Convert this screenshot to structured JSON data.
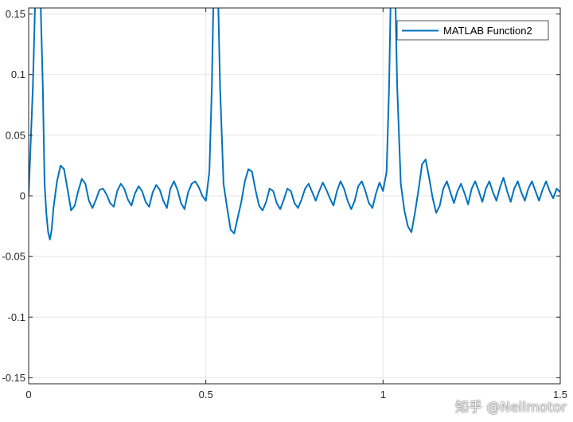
{
  "chart_data": {
    "type": "line",
    "title": "",
    "xlabel": "",
    "ylabel": "",
    "xlim": [
      0,
      1.5
    ],
    "ylim": [
      -0.155,
      0.155
    ],
    "x_ticks": [
      0,
      0.5,
      1,
      1.5
    ],
    "x_tick_labels": [
      "0",
      "0.5",
      "1",
      "1.5"
    ],
    "y_ticks": [
      0.15,
      0.1,
      0.05,
      0,
      -0.05,
      -0.1,
      -0.15
    ],
    "y_tick_labels": [
      "0.15",
      "0.1",
      "0.05",
      "0",
      "-0.05",
      "-0.1",
      "-0.15"
    ],
    "grid": true,
    "legend": {
      "position": "top-right",
      "entries": [
        "MATLAB Function2"
      ]
    },
    "series": [
      {
        "name": "MATLAB Function2",
        "color": "#0072BD",
        "x": [
          0,
          0.012,
          0.022,
          0.03,
          0.04,
          0.045,
          0.05,
          0.055,
          0.06,
          0.065,
          0.07,
          0.08,
          0.09,
          0.1,
          0.11,
          0.12,
          0.13,
          0.14,
          0.15,
          0.16,
          0.17,
          0.18,
          0.19,
          0.2,
          0.21,
          0.22,
          0.23,
          0.24,
          0.25,
          0.26,
          0.27,
          0.28,
          0.29,
          0.3,
          0.31,
          0.32,
          0.33,
          0.34,
          0.35,
          0.36,
          0.37,
          0.38,
          0.39,
          0.4,
          0.41,
          0.42,
          0.43,
          0.44,
          0.45,
          0.46,
          0.47,
          0.48,
          0.49,
          0.5,
          0.51,
          0.517,
          0.525,
          0.532,
          0.54,
          0.55,
          0.56,
          0.57,
          0.58,
          0.59,
          0.6,
          0.61,
          0.62,
          0.63,
          0.64,
          0.65,
          0.66,
          0.67,
          0.68,
          0.69,
          0.7,
          0.71,
          0.72,
          0.73,
          0.74,
          0.75,
          0.76,
          0.77,
          0.78,
          0.79,
          0.8,
          0.81,
          0.82,
          0.83,
          0.84,
          0.85,
          0.86,
          0.87,
          0.88,
          0.89,
          0.9,
          0.91,
          0.92,
          0.93,
          0.94,
          0.95,
          0.96,
          0.97,
          0.98,
          0.99,
          1.0,
          1.01,
          1.017,
          1.025,
          1.032,
          1.04,
          1.05,
          1.06,
          1.07,
          1.08,
          1.09,
          1.1,
          1.11,
          1.12,
          1.13,
          1.14,
          1.15,
          1.16,
          1.17,
          1.18,
          1.19,
          1.2,
          1.21,
          1.22,
          1.23,
          1.24,
          1.25,
          1.26,
          1.27,
          1.28,
          1.29,
          1.3,
          1.31,
          1.32,
          1.33,
          1.34,
          1.35,
          1.36,
          1.37,
          1.38,
          1.39,
          1.4,
          1.41,
          1.42,
          1.43,
          1.44,
          1.45,
          1.46,
          1.47,
          1.48,
          1.49,
          1.5
        ],
        "y": [
          0,
          0.09,
          0.2,
          0.2,
          0.09,
          0.01,
          -0.015,
          -0.03,
          -0.036,
          -0.028,
          -0.01,
          0.012,
          0.025,
          0.022,
          0.005,
          -0.012,
          -0.008,
          0.004,
          0.014,
          0.01,
          -0.004,
          -0.01,
          -0.003,
          0.005,
          0.006,
          0.001,
          -0.006,
          -0.009,
          0.004,
          0.01,
          0.006,
          -0.003,
          -0.008,
          0.002,
          0.008,
          0.004,
          -0.005,
          -0.009,
          0.003,
          0.009,
          0.005,
          -0.004,
          -0.01,
          0.006,
          0.012,
          0.005,
          -0.006,
          -0.011,
          0.003,
          0.01,
          0.012,
          0.007,
          0.0,
          -0.004,
          0.02,
          0.09,
          0.22,
          0.2,
          0.09,
          0.01,
          -0.01,
          -0.028,
          -0.031,
          -0.018,
          -0.005,
          0.012,
          0.022,
          0.02,
          0.005,
          -0.008,
          -0.012,
          -0.005,
          0.006,
          0.004,
          -0.006,
          -0.011,
          -0.003,
          0.006,
          0.004,
          -0.006,
          -0.01,
          -0.003,
          0.006,
          0.01,
          0.003,
          -0.004,
          0.004,
          0.011,
          0.005,
          -0.002,
          -0.008,
          0.004,
          0.012,
          0.006,
          -0.004,
          -0.011,
          -0.004,
          0.008,
          0.012,
          0.004,
          -0.006,
          -0.01,
          0.002,
          0.011,
          0.004,
          0.02,
          0.09,
          0.22,
          0.2,
          0.09,
          0.01,
          -0.012,
          -0.025,
          -0.03,
          -0.014,
          0.005,
          0.026,
          0.03,
          0.015,
          -0.002,
          -0.014,
          -0.008,
          0.006,
          0.012,
          0.003,
          -0.006,
          0.004,
          0.01,
          0.002,
          -0.007,
          0.006,
          0.012,
          0.004,
          -0.005,
          0.006,
          0.012,
          0.003,
          -0.004,
          0.007,
          0.015,
          0.004,
          -0.005,
          0.006,
          0.012,
          0.003,
          -0.004,
          0.006,
          0.012,
          0.004,
          -0.004,
          0.005,
          0.012,
          0.004,
          -0.002,
          0.006,
          0.003
        ]
      }
    ]
  },
  "watermark": "知乎 @Neilmotor"
}
